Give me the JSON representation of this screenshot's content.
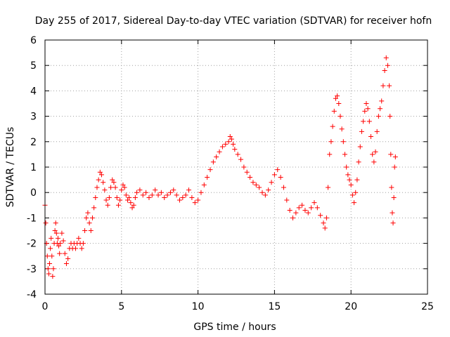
{
  "chart_data": {
    "type": "scatter",
    "title": "Day 255 of 2017, Sidereal Day-to-day VTEC variation (SDTVAR) for receiver hofn",
    "xlabel": "GPS time / hours",
    "ylabel": "SDTVAR / TECUs",
    "xlim": [
      0,
      25
    ],
    "ylim": [
      -4,
      6
    ],
    "xticks": [
      0,
      5,
      10,
      15,
      20,
      25
    ],
    "yticks": [
      -4,
      -3,
      -2,
      -1,
      0,
      1,
      2,
      3,
      4,
      5,
      6
    ],
    "grid": true,
    "marker": "+",
    "color": "#ff0000",
    "series": [
      {
        "name": "SDTVAR",
        "points": [
          [
            0.0,
            -0.5
          ],
          [
            0.05,
            -1.2
          ],
          [
            0.1,
            -2.0
          ],
          [
            0.15,
            -2.5
          ],
          [
            0.2,
            -3.0
          ],
          [
            0.25,
            -3.2
          ],
          [
            0.3,
            -2.8
          ],
          [
            0.35,
            -2.2
          ],
          [
            0.4,
            -1.8
          ],
          [
            0.45,
            -2.5
          ],
          [
            0.5,
            -3.3
          ],
          [
            0.55,
            -3.0
          ],
          [
            0.6,
            -2.0
          ],
          [
            0.65,
            -1.5
          ],
          [
            0.7,
            -1.2
          ],
          [
            0.75,
            -1.6
          ],
          [
            0.8,
            -2.0
          ],
          [
            0.85,
            -1.8
          ],
          [
            0.9,
            -2.1
          ],
          [
            0.95,
            -2.4
          ],
          [
            1.0,
            -2.0
          ],
          [
            1.1,
            -1.6
          ],
          [
            1.2,
            -1.9
          ],
          [
            1.3,
            -2.4
          ],
          [
            1.4,
            -2.8
          ],
          [
            1.5,
            -2.6
          ],
          [
            1.6,
            -2.2
          ],
          [
            1.7,
            -2.0
          ],
          [
            1.8,
            -2.2
          ],
          [
            1.9,
            -2.0
          ],
          [
            2.0,
            -2.2
          ],
          [
            2.1,
            -2.0
          ],
          [
            2.2,
            -1.8
          ],
          [
            2.3,
            -2.0
          ],
          [
            2.4,
            -2.2
          ],
          [
            2.5,
            -2.0
          ],
          [
            2.6,
            -1.5
          ],
          [
            2.7,
            -1.0
          ],
          [
            2.8,
            -0.8
          ],
          [
            2.9,
            -1.2
          ],
          [
            3.0,
            -1.5
          ],
          [
            3.1,
            -1.0
          ],
          [
            3.2,
            -0.6
          ],
          [
            3.3,
            -0.2
          ],
          [
            3.4,
            0.2
          ],
          [
            3.5,
            0.5
          ],
          [
            3.6,
            0.8
          ],
          [
            3.7,
            0.7
          ],
          [
            3.8,
            0.4
          ],
          [
            3.9,
            0.1
          ],
          [
            4.0,
            -0.3
          ],
          [
            4.1,
            -0.5
          ],
          [
            4.2,
            -0.2
          ],
          [
            4.3,
            0.2
          ],
          [
            4.4,
            0.5
          ],
          [
            4.5,
            0.4
          ],
          [
            4.6,
            0.2
          ],
          [
            4.7,
            -0.2
          ],
          [
            4.8,
            -0.5
          ],
          [
            4.9,
            -0.3
          ],
          [
            5.0,
            0.1
          ],
          [
            5.1,
            0.3
          ],
          [
            5.2,
            0.2
          ],
          [
            5.3,
            -0.1
          ],
          [
            5.4,
            -0.3
          ],
          [
            5.5,
            -0.2
          ],
          [
            5.6,
            -0.4
          ],
          [
            5.7,
            -0.6
          ],
          [
            5.8,
            -0.5
          ],
          [
            5.9,
            -0.2
          ],
          [
            6.0,
            0.0
          ],
          [
            6.2,
            0.1
          ],
          [
            6.4,
            -0.1
          ],
          [
            6.6,
            0.0
          ],
          [
            6.8,
            -0.2
          ],
          [
            7.0,
            -0.1
          ],
          [
            7.2,
            0.1
          ],
          [
            7.4,
            -0.1
          ],
          [
            7.6,
            0.0
          ],
          [
            7.8,
            -0.2
          ],
          [
            8.0,
            -0.1
          ],
          [
            8.2,
            0.0
          ],
          [
            8.4,
            0.1
          ],
          [
            8.6,
            -0.1
          ],
          [
            8.8,
            -0.3
          ],
          [
            9.0,
            -0.2
          ],
          [
            9.2,
            -0.1
          ],
          [
            9.4,
            0.1
          ],
          [
            9.6,
            -0.2
          ],
          [
            9.8,
            -0.4
          ],
          [
            10.0,
            -0.3
          ],
          [
            10.2,
            0.0
          ],
          [
            10.4,
            0.3
          ],
          [
            10.6,
            0.6
          ],
          [
            10.8,
            0.9
          ],
          [
            11.0,
            1.2
          ],
          [
            11.2,
            1.4
          ],
          [
            11.4,
            1.6
          ],
          [
            11.6,
            1.8
          ],
          [
            11.8,
            1.9
          ],
          [
            12.0,
            2.0
          ],
          [
            12.1,
            2.2
          ],
          [
            12.2,
            2.1
          ],
          [
            12.3,
            1.9
          ],
          [
            12.4,
            1.7
          ],
          [
            12.6,
            1.5
          ],
          [
            12.8,
            1.3
          ],
          [
            13.0,
            1.0
          ],
          [
            13.2,
            0.8
          ],
          [
            13.4,
            0.6
          ],
          [
            13.6,
            0.4
          ],
          [
            13.8,
            0.3
          ],
          [
            14.0,
            0.2
          ],
          [
            14.2,
            0.0
          ],
          [
            14.4,
            -0.1
          ],
          [
            14.6,
            0.1
          ],
          [
            14.8,
            0.4
          ],
          [
            15.0,
            0.7
          ],
          [
            15.2,
            0.9
          ],
          [
            15.4,
            0.6
          ],
          [
            15.6,
            0.2
          ],
          [
            15.8,
            -0.3
          ],
          [
            16.0,
            -0.7
          ],
          [
            16.2,
            -1.0
          ],
          [
            16.4,
            -0.8
          ],
          [
            16.6,
            -0.6
          ],
          [
            16.8,
            -0.5
          ],
          [
            17.0,
            -0.7
          ],
          [
            17.2,
            -0.8
          ],
          [
            17.4,
            -0.6
          ],
          [
            17.6,
            -0.4
          ],
          [
            17.8,
            -0.6
          ],
          [
            18.0,
            -0.9
          ],
          [
            18.2,
            -1.2
          ],
          [
            18.3,
            -1.4
          ],
          [
            18.4,
            -1.0
          ],
          [
            18.5,
            0.2
          ],
          [
            18.6,
            1.5
          ],
          [
            18.7,
            2.0
          ],
          [
            18.8,
            2.6
          ],
          [
            18.9,
            3.2
          ],
          [
            19.0,
            3.7
          ],
          [
            19.1,
            3.8
          ],
          [
            19.2,
            3.5
          ],
          [
            19.3,
            3.0
          ],
          [
            19.4,
            2.5
          ],
          [
            19.5,
            2.0
          ],
          [
            19.6,
            1.5
          ],
          [
            19.7,
            1.0
          ],
          [
            19.8,
            0.7
          ],
          [
            19.9,
            0.5
          ],
          [
            20.0,
            0.3
          ],
          [
            20.1,
            -0.1
          ],
          [
            20.2,
            -0.4
          ],
          [
            20.3,
            0.0
          ],
          [
            20.4,
            0.5
          ],
          [
            20.5,
            1.2
          ],
          [
            20.6,
            1.8
          ],
          [
            20.7,
            2.4
          ],
          [
            20.8,
            2.8
          ],
          [
            20.9,
            3.2
          ],
          [
            21.0,
            3.5
          ],
          [
            21.1,
            3.3
          ],
          [
            21.2,
            2.8
          ],
          [
            21.3,
            2.2
          ],
          [
            21.4,
            1.5
          ],
          [
            21.5,
            1.2
          ],
          [
            21.6,
            1.6
          ],
          [
            21.7,
            2.4
          ],
          [
            21.8,
            3.0
          ],
          [
            21.9,
            3.3
          ],
          [
            22.0,
            3.6
          ],
          [
            22.1,
            4.2
          ],
          [
            22.2,
            4.8
          ],
          [
            22.3,
            5.3
          ],
          [
            22.4,
            5.0
          ],
          [
            22.5,
            4.2
          ],
          [
            22.55,
            3.0
          ],
          [
            22.6,
            1.5
          ],
          [
            22.65,
            0.2
          ],
          [
            22.7,
            -0.8
          ],
          [
            22.75,
            -1.2
          ],
          [
            22.8,
            -0.2
          ],
          [
            22.85,
            1.0
          ],
          [
            22.9,
            1.4
          ]
        ]
      }
    ]
  }
}
